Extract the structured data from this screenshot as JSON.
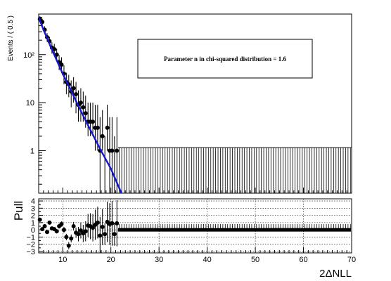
{
  "chart_data": [
    {
      "type": "scatter",
      "ylabel": "Events / ( 0.5 )",
      "xlim": [
        5,
        70
      ],
      "ylim": [
        0.13,
        700
      ],
      "yscale": "log",
      "grid": false,
      "y_ticks": [
        {
          "value": 1,
          "label": "1"
        },
        {
          "value": 10,
          "label": "10"
        },
        {
          "value": 100,
          "label": "10²"
        }
      ],
      "annotation": "Parameter n in chi-squared distribution = 1.6",
      "colors": {
        "data": "#000000",
        "fit": "#1515cc"
      },
      "fit_curve": {
        "name": "fit",
        "x": [
          5,
          6,
          8,
          10,
          12,
          14,
          16,
          18,
          20,
          22.2
        ],
        "y": [
          600,
          330,
          112,
          40,
          15.5,
          6.0,
          2.4,
          0.98,
          0.42,
          0.13
        ]
      },
      "series": [
        {
          "name": "data",
          "x": [
            5.25,
            5.75,
            6.25,
            6.75,
            7.25,
            7.75,
            8.25,
            8.75,
            9.25,
            9.75,
            10.25,
            10.75,
            11.25,
            11.75,
            12.25,
            12.75,
            13.25,
            13.75,
            14.25,
            14.75,
            15.25,
            15.75,
            16.25,
            16.75,
            17.25,
            17.75,
            18.25,
            18.75,
            19.25,
            19.75,
            20.25,
            20.75,
            21.25
          ],
          "y": [
            550,
            480,
            330,
            230,
            190,
            140,
            130,
            100,
            70,
            62,
            40,
            27,
            24,
            17,
            20,
            15,
            9,
            10,
            8,
            6,
            4,
            4,
            4,
            3,
            3,
            1,
            2,
            0,
            3,
            1,
            1,
            0,
            1
          ],
          "y_up": [
            80,
            75,
            60,
            50,
            45,
            40,
            38,
            33,
            28,
            26,
            20,
            15,
            14,
            12,
            14,
            12,
            9,
            10,
            9,
            8,
            6,
            6,
            6,
            6,
            6,
            4,
            5,
            2,
            6,
            4,
            4,
            2,
            4
          ],
          "y_down": [
            72,
            68,
            55,
            45,
            40,
            35,
            33,
            28,
            23,
            21,
            16,
            12,
            11,
            9,
            10,
            9,
            5,
            6,
            4,
            3,
            2,
            2,
            2,
            2,
            2,
            1,
            1,
            0,
            2,
            1,
            1,
            0,
            1
          ]
        }
      ]
    },
    {
      "type": "scatter",
      "xlabel": "2ΔNLL",
      "ylabel": "Pull",
      "xlim": [
        5,
        70
      ],
      "ylim": [
        -3.2,
        4.3
      ],
      "grid": true,
      "x_ticks": [
        10,
        20,
        30,
        40,
        50,
        60,
        70
      ],
      "y_ticks": [
        -3,
        -2,
        -1,
        0,
        1,
        2,
        3,
        4
      ],
      "series": [
        {
          "name": "pull",
          "x": [
            5.25,
            5.75,
            6.25,
            6.75,
            7.25,
            7.75,
            8.25,
            8.75,
            9.25,
            9.75,
            10.25,
            10.75,
            11.25,
            11.75,
            12.25,
            12.75,
            13.25,
            13.75,
            14.25,
            14.75,
            15.25,
            15.75,
            16.25,
            16.75,
            17.25,
            17.75,
            18.25,
            18.75,
            19.25,
            19.75,
            20.25,
            20.75,
            21.25
          ],
          "y": [
            1.4,
            0.1,
            0.5,
            -0.3,
            1.0,
            0.2,
            0.1,
            -0.2,
            0.5,
            0.8,
            0.0,
            -1.0,
            -2.2,
            -1.2,
            0.5,
            -0.4,
            -0.6,
            -0.1,
            -0.5,
            -0.2,
            0.6,
            0.5,
            0.3,
            0.7,
            1.0,
            -0.8,
            0.4,
            -0.6,
            1.1,
            0.8,
            0.9,
            -0.6,
            0.9
          ],
          "err": [
            0.15,
            0.15,
            0.18,
            0.2,
            0.22,
            0.25,
            0.27,
            0.3,
            0.33,
            0.36,
            0.4,
            0.45,
            0.5,
            0.55,
            0.6,
            0.7,
            1.0,
            1.1,
            1.2,
            1.4,
            1.6,
            1.8,
            1.9,
            2.1,
            2.2,
            2.6,
            2.5,
            1.5,
            2.8,
            2.9,
            3.1,
            1.6,
            3.2
          ]
        }
      ]
    }
  ]
}
